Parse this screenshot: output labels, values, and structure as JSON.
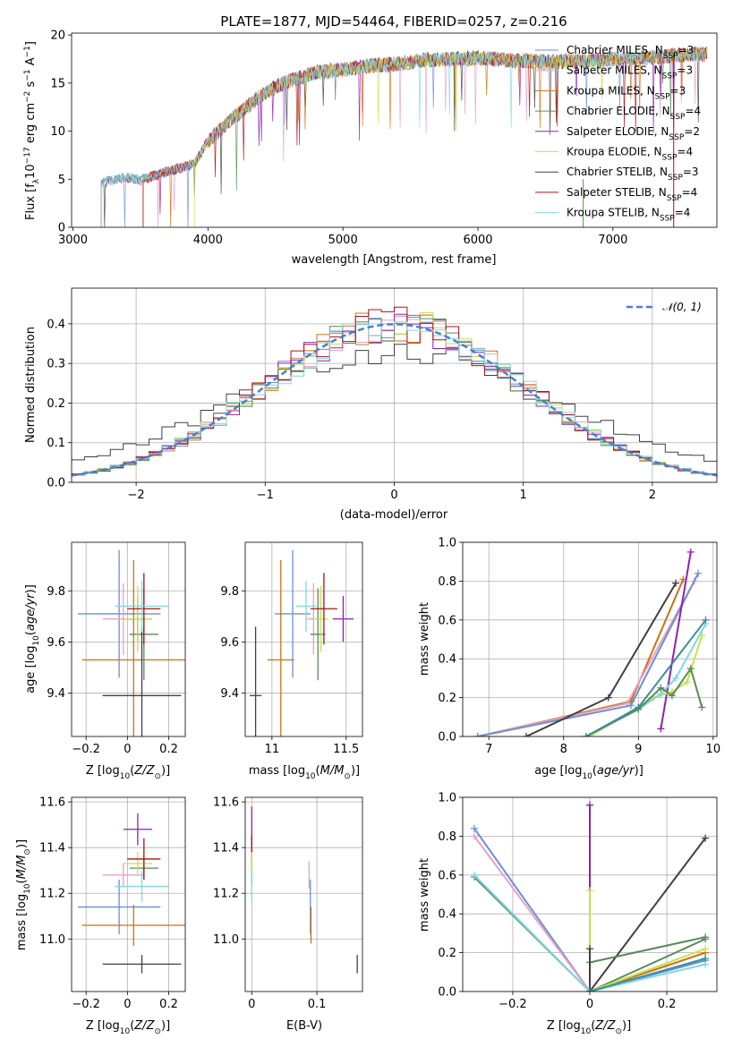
{
  "chart_data": [
    {
      "panel": "spectrum",
      "type": "line",
      "title": "PLATE=1877, MJD=54464, FIBERID=0257, z=0.216",
      "xlabel": "wavelength [Angstrom, rest frame]",
      "ylabel": "Flux [f_λ10^-17 erg cm^-2 s^-1 A^-1]",
      "xlim": [
        2990,
        7770
      ],
      "ylim": [
        0,
        20.2
      ],
      "xticks": [
        3000,
        4000,
        5000,
        6000,
        7000
      ],
      "yticks": [
        0,
        5,
        10,
        15,
        20
      ],
      "x": [
        3200,
        3300,
        3400,
        3500,
        3700,
        3900,
        4000,
        4200,
        4400,
        4500,
        4600,
        4800,
        5000,
        5200,
        5400,
        5600,
        5800,
        6000,
        6200,
        6500,
        6800,
        7000,
        7200,
        7400,
        7550
      ],
      "y": [
        4.6,
        4.9,
        5.2,
        4.9,
        5.8,
        6.6,
        9.0,
        11.5,
        13.8,
        14.6,
        15.2,
        16.1,
        16.4,
        16.8,
        17.0,
        17.4,
        17.5,
        17.6,
        17.4,
        17.2,
        17.3,
        17.5,
        17.6,
        17.8,
        18.0
      ],
      "legend": [
        {
          "label": "Chabrier MILES, N_SSP=3",
          "color": "#6a8fd8"
        },
        {
          "label": "Salpeter MILES, N_SSP=3",
          "color": "#e8a0c8"
        },
        {
          "label": "Kroupa MILES, N_SSP=3",
          "color": "#d07010"
        },
        {
          "label": "Chabrier ELODIE, N_SSP=4",
          "color": "#5a8a5a"
        },
        {
          "label": "Salpeter ELODIE, N_SSP=2",
          "color": "#9020b0"
        },
        {
          "label": "Kroupa ELODIE, N_SSP=4",
          "color": "#c8e050"
        },
        {
          "label": "Chabrier STELIB, N_SSP=3",
          "color": "#404040"
        },
        {
          "label": "Salpeter STELIB, N_SSP=4",
          "color": "#b01010"
        },
        {
          "label": "Kroupa STELIB, N_SSP=4",
          "color": "#80d8e0"
        }
      ],
      "series_start_wavelength": [
        3210,
        3210,
        3520,
        3210,
        3520,
        3900,
        3210,
        3520,
        3210
      ]
    },
    {
      "panel": "residual-hist",
      "type": "line",
      "xlabel": "(data-model)/error",
      "ylabel": "Normed distribution",
      "xlim": [
        -2.5,
        2.5
      ],
      "ylim": [
        0,
        0.49
      ],
      "xticks": [
        -2,
        -1,
        0,
        1,
        2
      ],
      "yticks": [
        0.0,
        0.1,
        0.2,
        0.3,
        0.4
      ],
      "reference_label": "𝒩(0, 1)",
      "reference_color": "#4a7fd0",
      "bin_width": 0.1
    },
    {
      "panel": "age-vs-Z",
      "type": "scatter",
      "xlabel": "Z [log10(Z/Z☉)]",
      "ylabel": "age [log10(age/yr)]",
      "xlim": [
        -0.27,
        0.28
      ],
      "ylim": [
        9.23,
        9.99
      ],
      "xticks": [
        -0.2,
        0.0,
        0.2
      ],
      "yticks": [
        9.4,
        9.6,
        9.8
      ],
      "points": [
        {
          "color": "#6a8fd8",
          "x": -0.04,
          "xerr": 0.2,
          "y": 9.71,
          "yerr": 0.25
        },
        {
          "color": "#e8a0c8",
          "x": -0.02,
          "xerr": 0.1,
          "y": 9.69,
          "yerr": 0.14
        },
        {
          "color": "#d07010",
          "x": 0.03,
          "xerr": 0.25,
          "y": 9.53,
          "yerr": 0.39
        },
        {
          "color": "#5a8a5a",
          "x": 0.08,
          "xerr": 0.07,
          "y": 9.63,
          "yerr": 0.18
        },
        {
          "color": "#9020b0",
          "x": 0.05,
          "xerr": 0.07,
          "y": 9.69,
          "yerr": 0.09
        },
        {
          "color": "#c8e050",
          "x": 0.05,
          "xerr": 0.07,
          "y": 9.69,
          "yerr": 0.13
        },
        {
          "color": "#404040",
          "x": 0.07,
          "xerr": 0.19,
          "y": 9.39,
          "yerr": 0.27
        },
        {
          "color": "#b01010",
          "x": 0.08,
          "xerr": 0.08,
          "y": 9.73,
          "yerr": 0.14
        },
        {
          "color": "#80d8e0",
          "x": 0.07,
          "xerr": 0.13,
          "y": 9.74,
          "yerr": 0.1
        }
      ]
    },
    {
      "panel": "age-vs-mass",
      "type": "scatter",
      "xlabel": "mass [log10(M/M☉)]",
      "ylabel": "",
      "xlim": [
        10.82,
        11.61
      ],
      "ylim": [
        9.23,
        9.99
      ],
      "xticks": [
        11.0,
        11.5
      ],
      "yticks": [
        9.4,
        9.6,
        9.8
      ],
      "points": [
        {
          "color": "#6a8fd8",
          "x": 11.14,
          "xerr": 0.12,
          "y": 9.71,
          "yerr": 0.25
        },
        {
          "color": "#e8a0c8",
          "x": 11.28,
          "xerr": 0.05,
          "y": 9.69,
          "yerr": 0.14
        },
        {
          "color": "#d07010",
          "x": 11.06,
          "xerr": 0.09,
          "y": 9.53,
          "yerr": 0.39
        },
        {
          "color": "#5a8a5a",
          "x": 11.31,
          "xerr": 0.05,
          "y": 9.63,
          "yerr": 0.18
        },
        {
          "color": "#9020b0",
          "x": 11.48,
          "xerr": 0.07,
          "y": 9.69,
          "yerr": 0.09
        },
        {
          "color": "#c8e050",
          "x": 11.33,
          "xerr": 0.05,
          "y": 9.69,
          "yerr": 0.13
        },
        {
          "color": "#404040",
          "x": 10.89,
          "xerr": 0.04,
          "y": 9.39,
          "yerr": 0.27
        },
        {
          "color": "#b01010",
          "x": 11.35,
          "xerr": 0.09,
          "y": 9.73,
          "yerr": 0.14
        },
        {
          "color": "#80d8e0",
          "x": 11.23,
          "xerr": 0.07,
          "y": 9.74,
          "yerr": 0.1
        }
      ]
    },
    {
      "panel": "weight-vs-age",
      "type": "line",
      "xlabel": "age [log10(age/yr)]",
      "ylabel": "mass weight",
      "xlim": [
        6.65,
        10.05
      ],
      "ylim": [
        0,
        1.0
      ],
      "xticks": [
        7,
        8,
        9,
        10
      ],
      "yticks": [
        0.0,
        0.2,
        0.4,
        0.6,
        0.8,
        1.0
      ],
      "series": [
        {
          "color": "#d07010",
          "x": [
            6.85,
            8.9,
            9.6
          ],
          "y": [
            0.0,
            0.18,
            0.81
          ]
        },
        {
          "color": "#e8a0c8",
          "x": [
            6.85,
            8.85,
            9.75
          ],
          "y": [
            0.0,
            0.17,
            0.8
          ]
        },
        {
          "color": "#6a8fd8",
          "x": [
            6.85,
            8.9,
            9.8
          ],
          "y": [
            0.0,
            0.16,
            0.84
          ]
        },
        {
          "color": "#404040",
          "x": [
            7.5,
            8.6,
            9.5
          ],
          "y": [
            0.0,
            0.2,
            0.79
          ]
        },
        {
          "color": "#9020b0",
          "x": [
            9.3,
            9.7
          ],
          "y": [
            0.04,
            0.95
          ]
        },
        {
          "color": "#c8e050",
          "x": [
            8.35,
            9.2,
            9.45,
            9.65,
            9.85
          ],
          "y": [
            0.0,
            0.2,
            0.23,
            0.28,
            0.52
          ]
        },
        {
          "color": "#80d8e0",
          "x": [
            8.3,
            9.0,
            9.3,
            9.5,
            9.9
          ],
          "y": [
            0.0,
            0.14,
            0.22,
            0.3,
            0.58
          ]
        },
        {
          "color": "#5a8a5a",
          "x": [
            8.3,
            9.0,
            9.3,
            9.45,
            9.7,
            9.85
          ],
          "y": [
            0.0,
            0.14,
            0.25,
            0.21,
            0.35,
            0.15
          ]
        },
        {
          "color": "#3a8fa0",
          "x": [
            8.3,
            9.0,
            9.9
          ],
          "y": [
            0.0,
            0.15,
            0.6
          ]
        }
      ]
    },
    {
      "panel": "mass-vs-Z",
      "type": "scatter",
      "xlabel": "Z [log10(Z/Z☉)]",
      "ylabel": "mass [log10(M/M☉)]",
      "xlim": [
        -0.27,
        0.28
      ],
      "ylim": [
        10.77,
        11.62
      ],
      "xticks": [
        -0.2,
        0.0,
        0.2
      ],
      "yticks": [
        11.0,
        11.2,
        11.4,
        11.6
      ],
      "points": [
        {
          "color": "#6a8fd8",
          "x": -0.04,
          "xerr": 0.2,
          "y": 11.14,
          "yerr": 0.12
        },
        {
          "color": "#e8a0c8",
          "x": -0.02,
          "xerr": 0.1,
          "y": 11.28,
          "yerr": 0.05
        },
        {
          "color": "#d07010",
          "x": 0.03,
          "xerr": 0.25,
          "y": 11.06,
          "yerr": 0.09
        },
        {
          "color": "#5a8a5a",
          "x": 0.08,
          "xerr": 0.07,
          "y": 11.31,
          "yerr": 0.05
        },
        {
          "color": "#9020b0",
          "x": 0.05,
          "xerr": 0.07,
          "y": 11.48,
          "yerr": 0.07
        },
        {
          "color": "#c8e050",
          "x": 0.05,
          "xerr": 0.07,
          "y": 11.33,
          "yerr": 0.05
        },
        {
          "color": "#404040",
          "x": 0.07,
          "xerr": 0.19,
          "y": 10.89,
          "yerr": 0.04
        },
        {
          "color": "#b01010",
          "x": 0.08,
          "xerr": 0.08,
          "y": 11.35,
          "yerr": 0.09
        },
        {
          "color": "#80d8e0",
          "x": 0.07,
          "xerr": 0.13,
          "y": 11.23,
          "yerr": 0.07
        }
      ]
    },
    {
      "panel": "mass-vs-ebv",
      "type": "scatter",
      "xlabel": "E(B-V)",
      "ylabel": "",
      "xlim": [
        -0.01,
        0.17
      ],
      "ylim": [
        10.77,
        11.62
      ],
      "xticks": [
        0.0,
        0.1
      ],
      "yticks": [
        11.0,
        11.2,
        11.4,
        11.6
      ],
      "points": [
        {
          "color": "#9020b0",
          "x": 0.0,
          "y": 11.48,
          "yerr": 0.1
        },
        {
          "color": "#b01010",
          "x": 0.0,
          "y": 11.35,
          "yerr": 0.1
        },
        {
          "color": "#5a8a5a",
          "x": 0.0,
          "y": 11.31,
          "yerr": 0.05
        },
        {
          "color": "#c8e050",
          "x": 0.0,
          "y": 11.33,
          "yerr": 0.05
        },
        {
          "color": "#80d8e0",
          "x": 0.0,
          "y": 11.23,
          "yerr": 0.07
        },
        {
          "color": "#e8a0c8",
          "x": 0.088,
          "y": 11.28,
          "yerr": 0.06
        },
        {
          "color": "#6a8fd8",
          "x": 0.09,
          "y": 11.14,
          "yerr": 0.12
        },
        {
          "color": "#d07010",
          "x": 0.091,
          "y": 11.06,
          "yerr": 0.08
        },
        {
          "color": "#404040",
          "x": 0.162,
          "y": 10.89,
          "yerr": 0.04
        }
      ]
    },
    {
      "panel": "weight-vs-Z",
      "type": "line",
      "xlabel": "Z [log10(Z/Z☉)]",
      "ylabel": "mass weight",
      "xlim": [
        -0.33,
        0.33
      ],
      "ylim": [
        0,
        1.0
      ],
      "xticks": [
        -0.2,
        0.0,
        0.2
      ],
      "yticks": [
        0.0,
        0.2,
        0.4,
        0.6,
        0.8,
        1.0
      ],
      "series": [
        {
          "color": "#6a8fd8",
          "x": [
            -0.3,
            0.0,
            0.3
          ],
          "y": [
            0.84,
            0.0,
            0.16
          ]
        },
        {
          "color": "#e8a0c8",
          "x": [
            -0.3,
            0.0,
            0.3
          ],
          "y": [
            0.8,
            0.0,
            0.2
          ]
        },
        {
          "color": "#5a8a5a",
          "x": [
            -0.3,
            0.0,
            0.3
          ],
          "y": [
            0.59,
            0.0,
            0.27
          ]
        },
        {
          "color": "#80d8e0",
          "x": [
            -0.3,
            0.0,
            0.3
          ],
          "y": [
            0.6,
            0.0,
            0.14
          ]
        },
        {
          "color": "#404040",
          "x": [
            0.0,
            0.3
          ],
          "y": [
            0.0,
            0.79
          ]
        },
        {
          "color": "#5a8a5a",
          "x": [
            0.0,
            0.3
          ],
          "y": [
            0.15,
            0.28
          ]
        },
        {
          "color": "#d07010",
          "x": [
            0.0,
            0.3
          ],
          "y": [
            0.0,
            0.2
          ]
        },
        {
          "color": "#c8e050",
          "x": [
            0.0,
            0.3
          ],
          "y": [
            0.0,
            0.22
          ]
        },
        {
          "color": "#9020b0",
          "x": [
            0.0,
            0.0
          ],
          "y": [
            0.0,
            0.96
          ]
        },
        {
          "color": "#c8e050",
          "x": [
            0.0,
            0.0
          ],
          "y": [
            0.0,
            0.52
          ]
        },
        {
          "color": "#404040",
          "x": [
            0.0,
            0.0
          ],
          "y": [
            0.0,
            0.22
          ]
        },
        {
          "color": "#3a8fa0",
          "x": [
            0.0,
            0.3
          ],
          "y": [
            0.0,
            0.17
          ]
        }
      ]
    }
  ]
}
